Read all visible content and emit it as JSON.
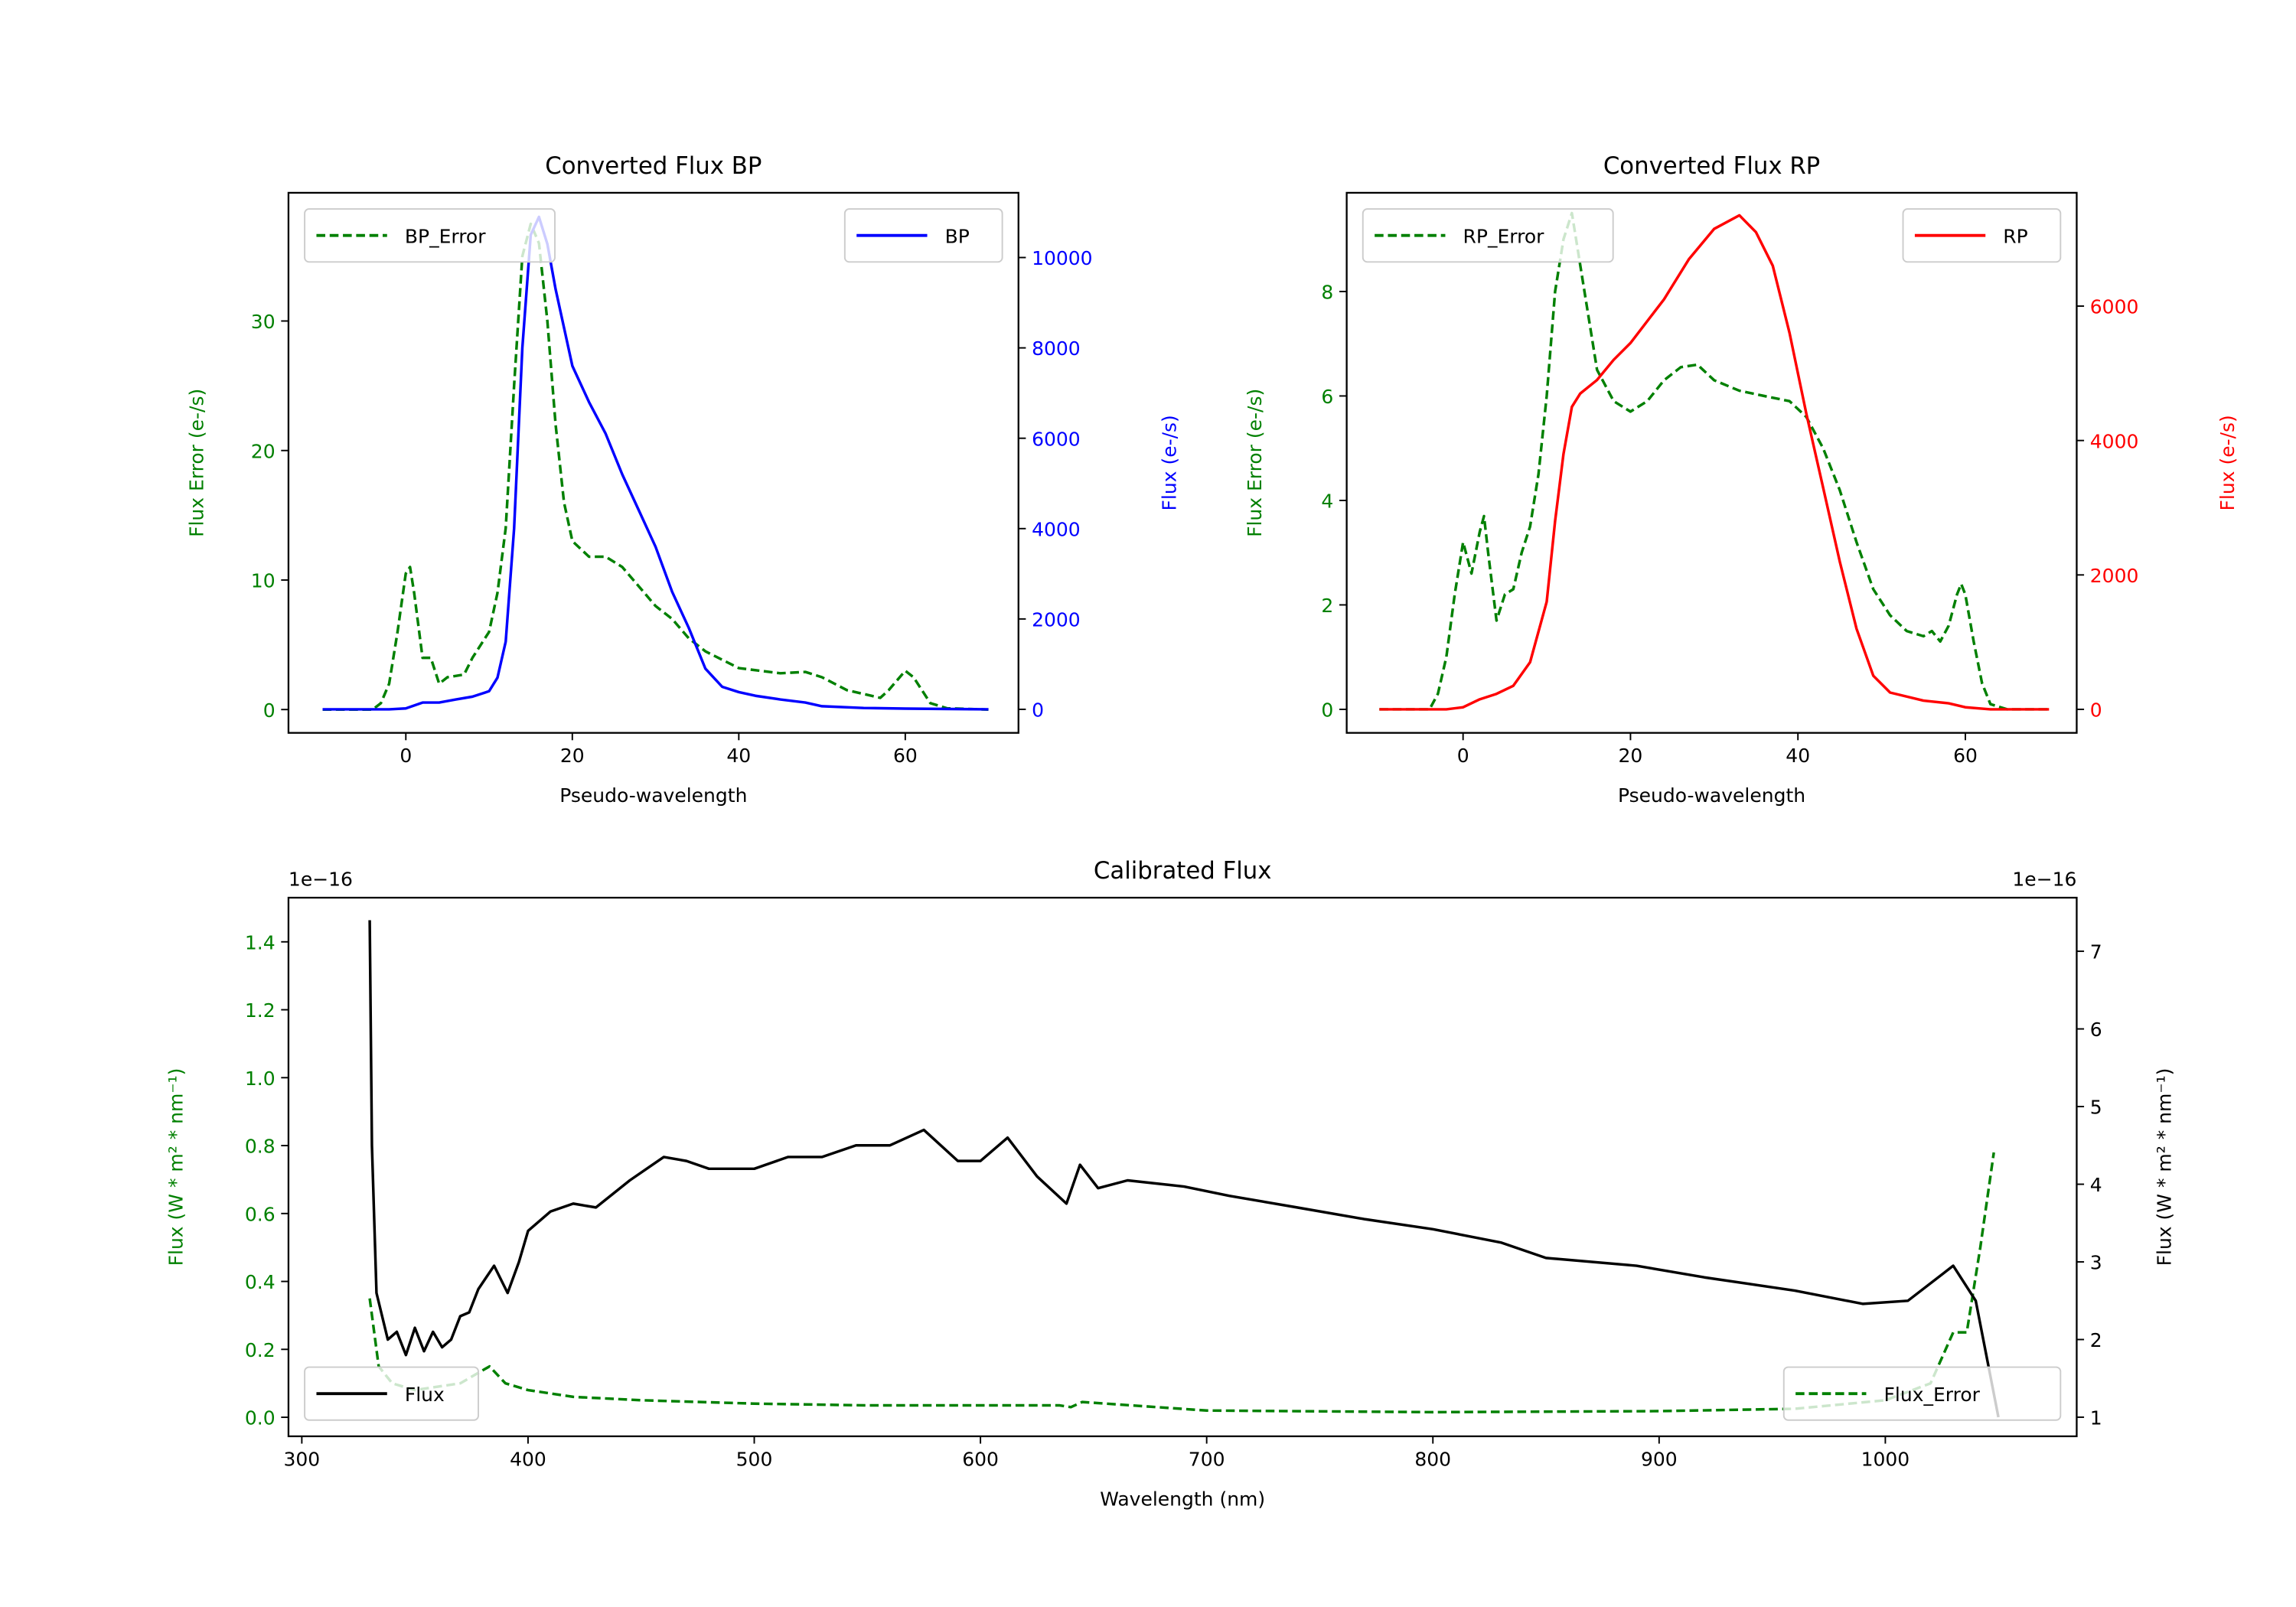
{
  "colors": {
    "green": "#008000",
    "blue": "#0000ff",
    "red": "#ff0000",
    "black": "#000000"
  },
  "chart_data": [
    {
      "type": "line",
      "title": "Converted Flux BP",
      "xlabel": "Pseudo-wavelength",
      "ylabel_left": "Flux Error (e-/s)",
      "ylabel_right": "Flux (e-/s)",
      "xlim": [
        -14.1,
        73.6
      ],
      "ylim_left": [
        -1.8,
        39.9
      ],
      "ylim_right": [
        -521,
        11433
      ],
      "xticks": [
        0,
        20,
        40,
        60
      ],
      "yticks_left": [
        0,
        10,
        20,
        30
      ],
      "yticks_right": [
        0,
        2000,
        4000,
        6000,
        8000,
        10000
      ],
      "left_color": "green",
      "right_color": "blue",
      "legend_left": {
        "label": "BP_Error",
        "position": "upper left"
      },
      "legend_right": {
        "label": "BP",
        "position": "upper right"
      },
      "series": [
        {
          "name": "BP_Error",
          "axis": "left",
          "color": "green",
          "dashed": true,
          "x": [
            -10,
            -4,
            -3,
            -2,
            -1,
            0,
            0.5,
            1,
            2,
            3,
            4,
            5,
            7,
            8,
            10,
            11,
            12,
            13,
            14,
            15,
            16,
            17,
            18,
            19,
            20,
            22,
            24,
            26,
            28,
            30,
            32,
            34,
            36,
            40,
            45,
            48,
            50,
            53,
            57,
            58,
            60,
            61,
            63,
            65,
            70
          ],
          "y": [
            0,
            0,
            0.5,
            2,
            6,
            10.5,
            11,
            9,
            4,
            4,
            2,
            2.5,
            2.7,
            4,
            6,
            9,
            14,
            25,
            35,
            37.5,
            36,
            30,
            22,
            16,
            13,
            11.8,
            11.8,
            11,
            9.5,
            8,
            7,
            5.5,
            4.5,
            3.2,
            2.8,
            2.9,
            2.5,
            1.5,
            0.9,
            1.5,
            3,
            2.5,
            0.5,
            0.1,
            0
          ]
        },
        {
          "name": "BP",
          "axis": "right",
          "color": "blue",
          "dashed": false,
          "x": [
            -10,
            -2,
            0,
            2,
            4,
            6,
            8,
            10,
            11,
            12,
            13,
            14,
            15,
            16,
            17,
            18,
            20,
            22,
            24,
            26,
            28,
            30,
            32,
            34,
            36,
            38,
            40,
            42,
            45,
            48,
            50,
            55,
            60,
            70
          ],
          "y": [
            0,
            0,
            20,
            150,
            150,
            220,
            280,
            400,
            700,
            1500,
            4000,
            8000,
            10500,
            10900,
            10300,
            9300,
            7600,
            6800,
            6100,
            5200,
            4400,
            3600,
            2600,
            1800,
            900,
            500,
            380,
            300,
            220,
            150,
            70,
            30,
            15,
            0
          ]
        }
      ]
    },
    {
      "type": "line",
      "title": "Converted Flux RP",
      "xlabel": "Pseudo-wavelength",
      "ylabel_left": "Flux Error (e-/s)",
      "ylabel_right": "Flux (e-/s)",
      "xlim": [
        -13.9,
        73.3
      ],
      "ylim_left": [
        -0.45,
        9.89
      ],
      "ylim_right": [
        -350,
        7686
      ],
      "xticks": [
        0,
        20,
        40,
        60
      ],
      "yticks_left": [
        0,
        2,
        4,
        6,
        8
      ],
      "yticks_right": [
        0,
        2000,
        4000,
        6000
      ],
      "left_color": "green",
      "right_color": "red",
      "legend_left": {
        "label": "RP_Error",
        "position": "upper left"
      },
      "legend_right": {
        "label": "RP",
        "position": "upper right"
      },
      "series": [
        {
          "name": "RP_Error",
          "axis": "left",
          "color": "green",
          "dashed": true,
          "x": [
            -10,
            -4,
            -3,
            -2,
            -1,
            0,
            1,
            2,
            2.5,
            3,
            4,
            5,
            6,
            7,
            8,
            9,
            10,
            11,
            12,
            13,
            14,
            15,
            16,
            18,
            20,
            22,
            24,
            26,
            28,
            30,
            33,
            36,
            39,
            41,
            43,
            45,
            47,
            49,
            51,
            53,
            55,
            56,
            57,
            58,
            59,
            59.5,
            60,
            61,
            62,
            63,
            65,
            70
          ],
          "y": [
            0,
            0,
            0.3,
            1,
            2.2,
            3.2,
            2.6,
            3.4,
            3.7,
            3.0,
            1.7,
            2.2,
            2.3,
            3,
            3.5,
            4.5,
            6,
            8,
            9,
            9.5,
            8.5,
            7.5,
            6.5,
            5.9,
            5.7,
            5.9,
            6.3,
            6.55,
            6.6,
            6.3,
            6.1,
            6.0,
            5.9,
            5.6,
            5.0,
            4.2,
            3.2,
            2.3,
            1.8,
            1.5,
            1.4,
            1.5,
            1.3,
            1.6,
            2.2,
            2.4,
            2.2,
            1.3,
            0.5,
            0.1,
            0,
            0
          ]
        },
        {
          "name": "RP",
          "axis": "right",
          "color": "red",
          "dashed": false,
          "x": [
            -10,
            -2,
            0,
            2,
            4,
            6,
            8,
            10,
            11,
            12,
            13,
            14,
            16,
            18,
            20,
            24,
            27,
            30,
            33,
            35,
            37,
            39,
            41,
            43,
            45,
            47,
            49,
            51,
            55,
            58,
            60,
            63,
            70
          ],
          "y": [
            0,
            0,
            30,
            150,
            230,
            350,
            700,
            1600,
            2800,
            3800,
            4500,
            4700,
            4900,
            5200,
            5450,
            6100,
            6700,
            7150,
            7350,
            7100,
            6600,
            5600,
            4400,
            3300,
            2200,
            1200,
            500,
            250,
            130,
            90,
            30,
            0,
            0
          ]
        }
      ]
    },
    {
      "type": "line",
      "title": "Calibrated Flux",
      "xlabel": "Wavelength (nm)",
      "ylabel_left": "Flux (W * m² * nm⁻¹)",
      "ylabel_right": "Flux (W * m² * nm⁻¹)",
      "offset_left": "1e−16",
      "offset_right": "1e−16",
      "xlim": [
        294.1,
        1084.6
      ],
      "ylim_left": [
        -0.056,
        1.53
      ],
      "ylim_right": [
        0.754,
        7.69
      ],
      "xticks": [
        300,
        400,
        500,
        600,
        700,
        800,
        900,
        1000
      ],
      "yticks_left": [
        0.0,
        0.2,
        0.4,
        0.6,
        0.8,
        1.0,
        1.2,
        1.4
      ],
      "yticks_left_labels": [
        "0.0",
        "0.2",
        "0.4",
        "0.6",
        "0.8",
        "1.0",
        "1.2",
        "1.4"
      ],
      "yticks_right": [
        1,
        2,
        3,
        4,
        5,
        6,
        7
      ],
      "left_color": "green",
      "right_color": "black",
      "legend_left": {
        "label": "Flux",
        "position": "lower left"
      },
      "legend_right": {
        "label": "Flux_Error",
        "position": "lower right"
      },
      "series": [
        {
          "name": "Flux_Error",
          "axis": "left",
          "color": "green",
          "dashed": true,
          "x": [
            330,
            334,
            340,
            350,
            370,
            383,
            390,
            400,
            420,
            450,
            500,
            550,
            600,
            635,
            640,
            645,
            700,
            800,
            900,
            960,
            1000,
            1020,
            1030,
            1036,
            1042,
            1048
          ],
          "y": [
            0.35,
            0.15,
            0.1,
            0.08,
            0.1,
            0.15,
            0.1,
            0.08,
            0.06,
            0.05,
            0.04,
            0.035,
            0.035,
            0.035,
            0.03,
            0.045,
            0.02,
            0.015,
            0.018,
            0.025,
            0.05,
            0.1,
            0.25,
            0.25,
            0.5,
            0.78
          ]
        },
        {
          "name": "Flux",
          "axis": "right",
          "color": "black",
          "dashed": false,
          "x": [
            330,
            331,
            333,
            338,
            342,
            346,
            350,
            354,
            358,
            362,
            366,
            370,
            374,
            378,
            385,
            391,
            396,
            400,
            410,
            420,
            430,
            445,
            460,
            470,
            480,
            490,
            500,
            515,
            530,
            545,
            560,
            575,
            590,
            600,
            612,
            625,
            638,
            644,
            652,
            665,
            690,
            710,
            740,
            770,
            800,
            830,
            850,
            890,
            920,
            960,
            990,
            1010,
            1030,
            1040,
            1050
          ],
          "y": [
            7.4,
            4.5,
            2.6,
            2.0,
            2.1,
            1.8,
            2.15,
            1.85,
            2.1,
            1.9,
            2.0,
            2.3,
            2.35,
            2.65,
            2.95,
            2.6,
            3.0,
            3.4,
            3.65,
            3.75,
            3.7,
            4.05,
            4.35,
            4.3,
            4.2,
            4.2,
            4.2,
            4.35,
            4.35,
            4.5,
            4.5,
            4.7,
            4.3,
            4.3,
            4.6,
            4.1,
            3.75,
            4.25,
            3.95,
            4.05,
            3.97,
            3.85,
            3.7,
            3.55,
            3.42,
            3.25,
            3.05,
            2.95,
            2.8,
            2.63,
            2.46,
            2.5,
            2.95,
            2.5,
            1.0
          ]
        }
      ]
    }
  ]
}
